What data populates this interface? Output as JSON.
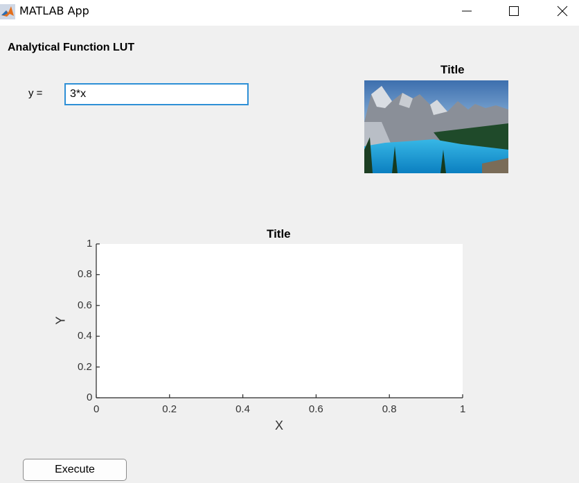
{
  "window": {
    "title": "MATLAB App",
    "controls": [
      "minimize",
      "maximize",
      "close"
    ]
  },
  "panel": {
    "heading": "Analytical Function LUT"
  },
  "function_input": {
    "label": "y =",
    "value": "3*x"
  },
  "image_axes": {
    "title": "Title",
    "image": "mountain-lake-landscape"
  },
  "plot_axes": {
    "title": "Title",
    "xlabel": "X",
    "ylabel": "Y",
    "x_ticks": [
      "0",
      "0.2",
      "0.4",
      "0.6",
      "0.8",
      "1"
    ],
    "y_ticks": [
      "0",
      "0.2",
      "0.4",
      "0.6",
      "0.8",
      "1"
    ],
    "xlim": [
      0,
      1
    ],
    "ylim": [
      0,
      1
    ]
  },
  "execute_button": {
    "label": "Execute"
  }
}
